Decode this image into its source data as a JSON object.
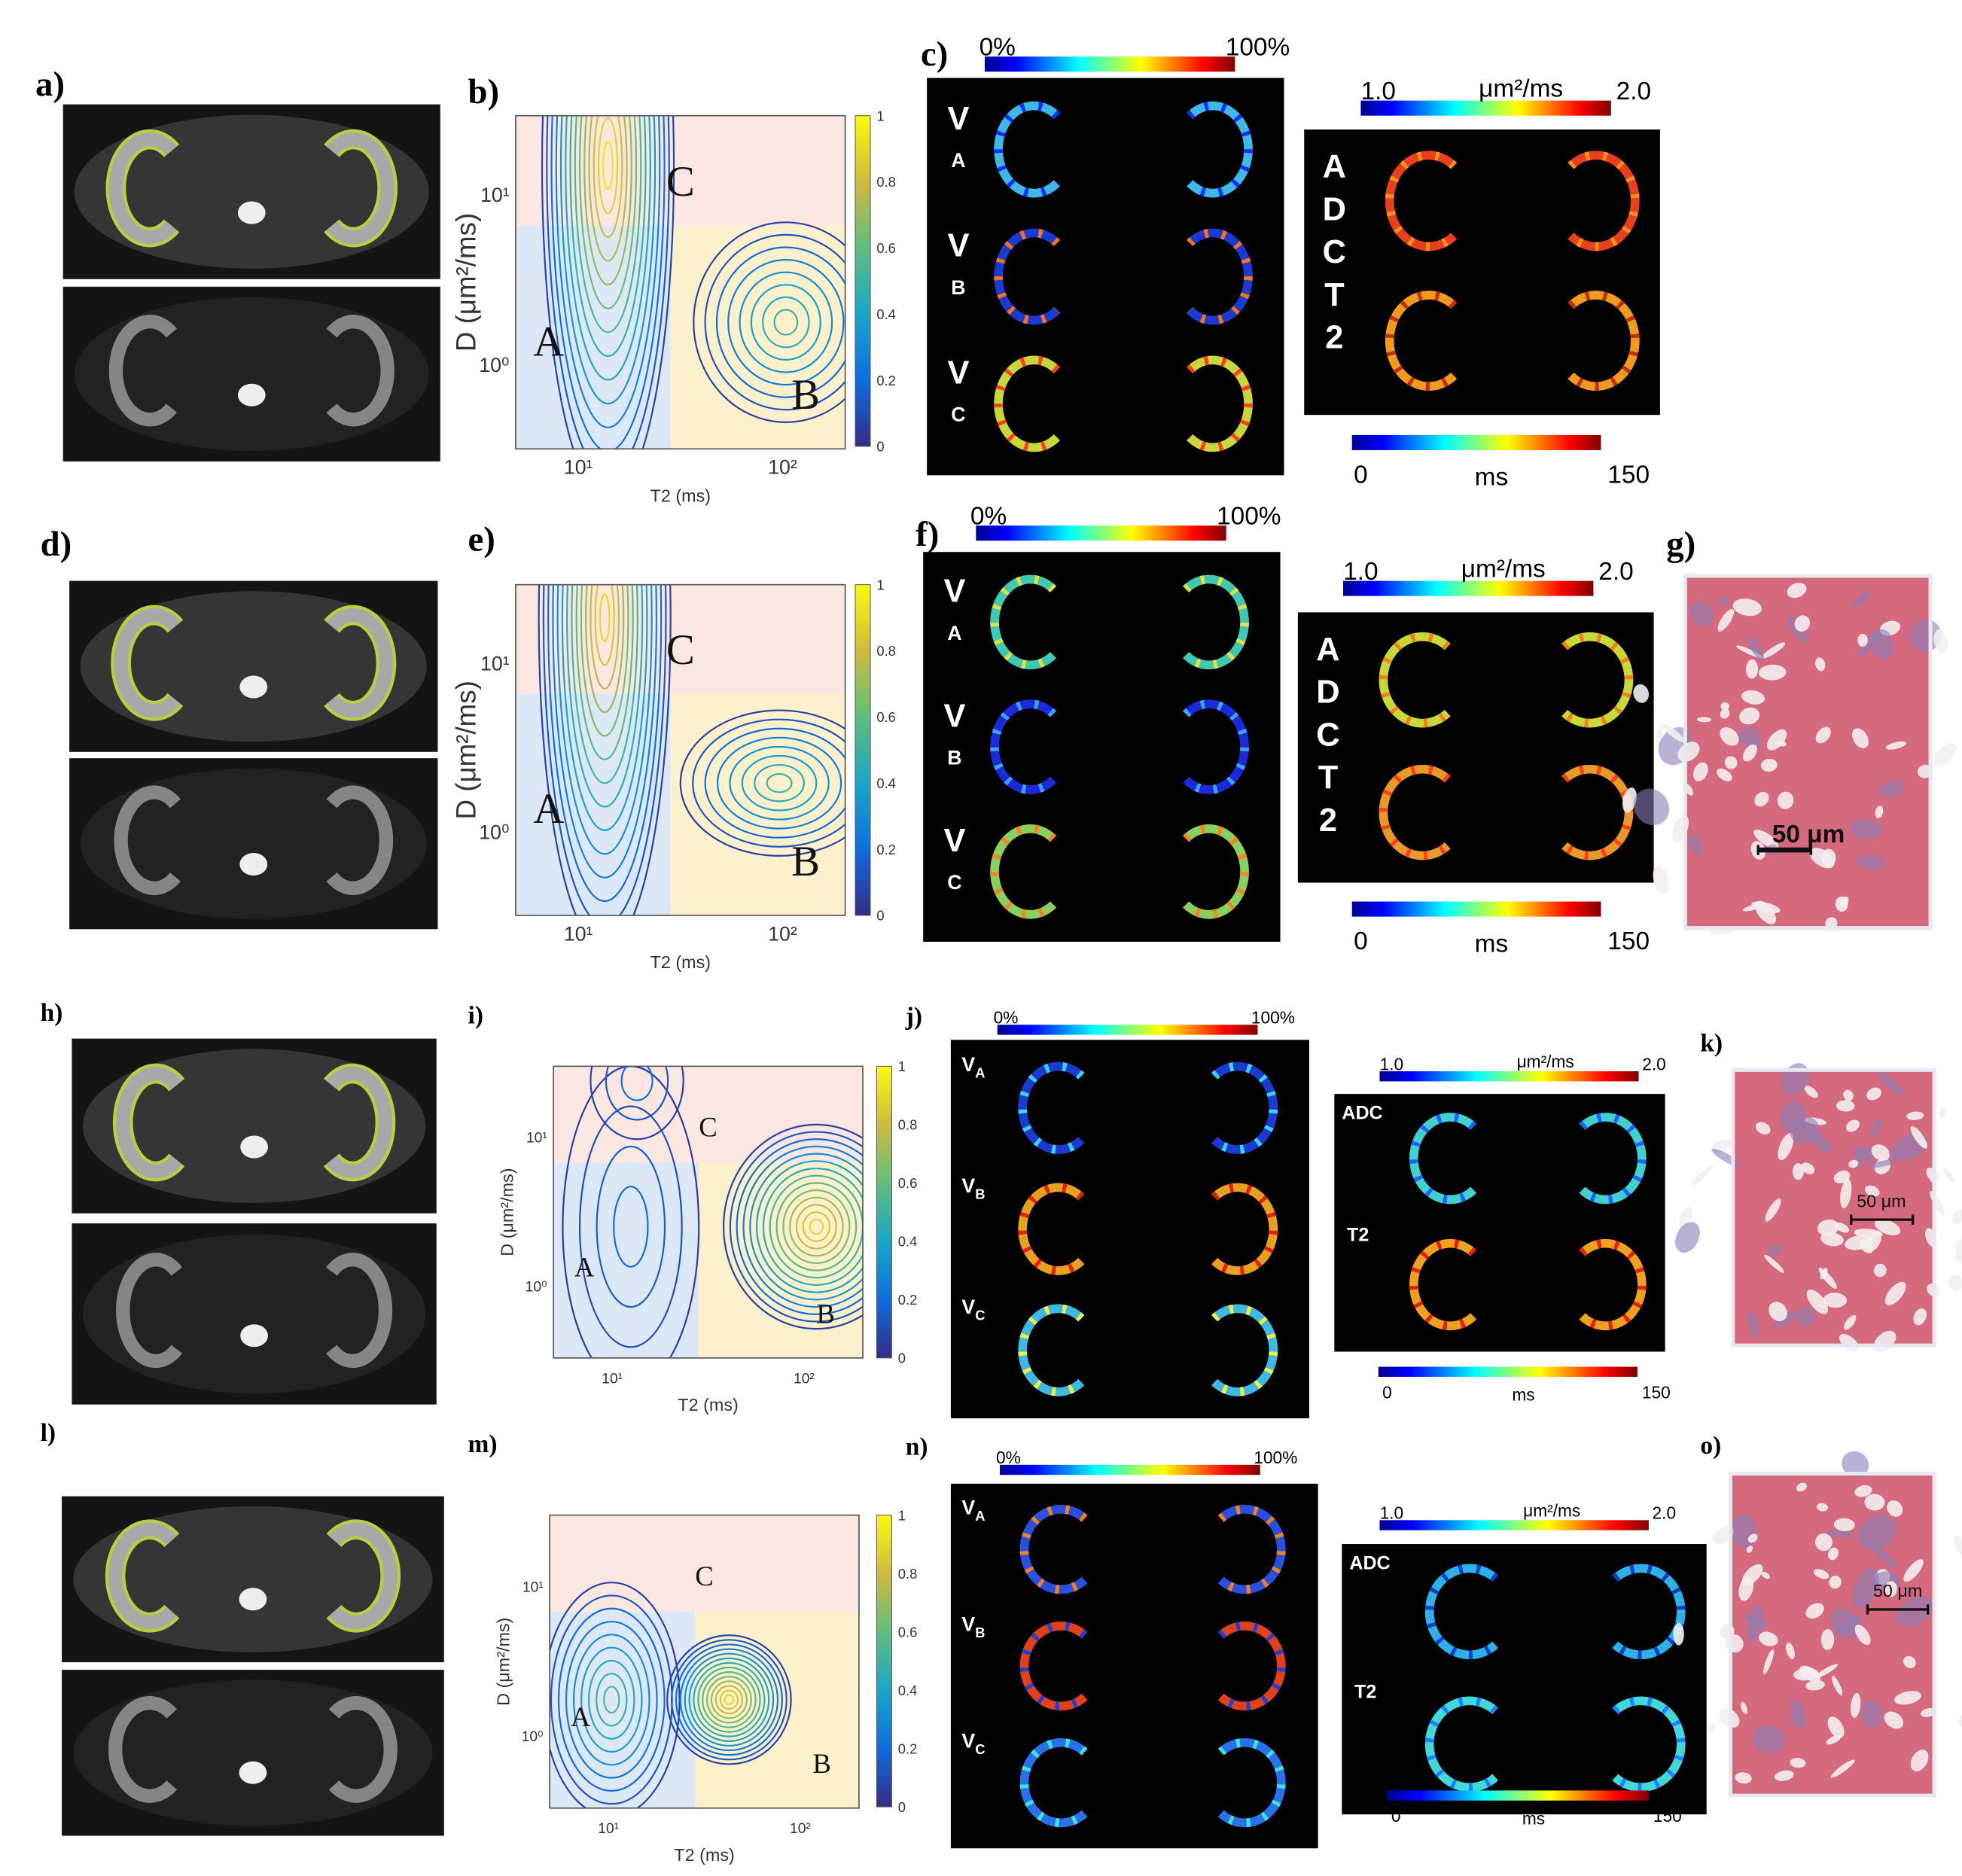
{
  "rows": [
    {
      "images_label": "a)",
      "plot": {
        "label": "b)",
        "ylabel": "D (μm²/ms)",
        "xlabel": "T2 (ms)",
        "xticks": [
          "10¹",
          "10²"
        ],
        "yticks": [
          "10¹",
          "10⁰"
        ],
        "colorbar_ticks": [
          0,
          0.2,
          0.4,
          0.6,
          0.8,
          1
        ],
        "regions": [
          "A",
          "B",
          "C"
        ]
      },
      "maps": {
        "label": "c)",
        "fraction_scale": [
          "0%",
          "100%"
        ],
        "fraction_rows": [
          [
            "V",
            "A"
          ],
          [
            "V",
            "B"
          ],
          [
            "V",
            "C"
          ]
        ],
        "adc_scale": [
          "1.0",
          "μm²/ms",
          "2.0"
        ],
        "adc_rows": [
          "ADC",
          "T2"
        ],
        "t2_scale": [
          "0",
          "ms",
          "150"
        ]
      }
    },
    {
      "images_label": "d)",
      "plot": {
        "label": "e)",
        "ylabel": "D (μm²/ms)",
        "xlabel": "T2 (ms)",
        "xticks": [
          "10¹",
          "10²"
        ],
        "yticks": [
          "10¹",
          "10⁰"
        ],
        "colorbar_ticks": [
          0,
          0.2,
          0.4,
          0.6,
          0.8,
          1
        ],
        "regions": [
          "A",
          "B",
          "C"
        ]
      },
      "maps": {
        "label": "f)",
        "fraction_scale": [
          "0%",
          "100%"
        ],
        "fraction_rows": [
          [
            "V",
            "A"
          ],
          [
            "V",
            "B"
          ],
          [
            "V",
            "C"
          ]
        ],
        "adc_scale": [
          "1.0",
          "μm²/ms",
          "2.0"
        ],
        "adc_rows": [
          "ADC",
          "T2"
        ],
        "t2_scale": [
          "0",
          "ms",
          "150"
        ]
      },
      "histology": {
        "label": "g)",
        "scale_bar": "50 μm"
      }
    },
    {
      "images_label": "h)",
      "plot": {
        "label": "i)",
        "ylabel": "D (μm²/ms)",
        "xlabel": "T2 (ms)",
        "xticks": [
          "10¹",
          "10²"
        ],
        "yticks": [
          "10¹",
          "10⁰"
        ],
        "colorbar_ticks": [
          0,
          0.2,
          0.4,
          0.6,
          0.8,
          1
        ],
        "regions": [
          "A",
          "B",
          "C"
        ]
      },
      "maps": {
        "label": "j)",
        "fraction_scale": [
          "0%",
          "100%"
        ],
        "fraction_rows": [
          [
            "V",
            "A"
          ],
          [
            "V",
            "B"
          ],
          [
            "V",
            "C"
          ]
        ],
        "adc_scale": [
          "1.0",
          "μm²/ms",
          "2.0"
        ],
        "adc_rows": [
          "ADC",
          "T2"
        ],
        "t2_scale": [
          "0",
          "ms",
          "150"
        ]
      },
      "histology": {
        "label": "k)",
        "scale_bar": "50 μm"
      }
    },
    {
      "images_label": "l)",
      "plot": {
        "label": "m)",
        "ylabel": "D (μm²/ms)",
        "xlabel": "T2 (ms)",
        "xticks": [
          "10¹",
          "10²"
        ],
        "yticks": [
          "10¹",
          "10⁰"
        ],
        "colorbar_ticks": [
          0,
          0.2,
          0.4,
          0.6,
          0.8,
          1
        ],
        "regions": [
          "A",
          "B",
          "C"
        ]
      },
      "maps": {
        "label": "n)",
        "fraction_scale": [
          "0%",
          "100%"
        ],
        "fraction_rows": [
          [
            "V",
            "A"
          ],
          [
            "V",
            "B"
          ],
          [
            "V",
            "C"
          ]
        ],
        "adc_scale": [
          "1.0",
          "μm²/ms",
          "2.0"
        ],
        "adc_rows": [
          "ADC",
          "T2"
        ],
        "t2_scale": [
          "0",
          "ms",
          "150"
        ]
      },
      "histology": {
        "label": "o)",
        "scale_bar": "50 μm"
      }
    }
  ]
}
